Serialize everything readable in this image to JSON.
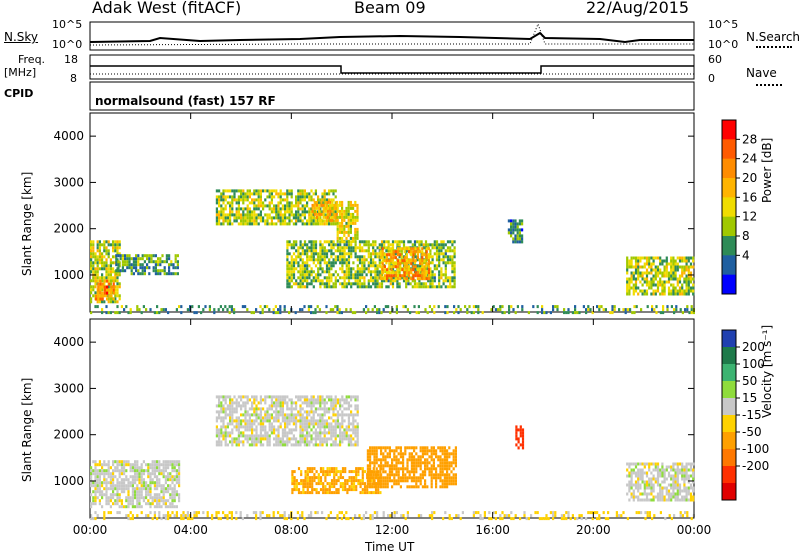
{
  "header": {
    "station": "Adak West (fitACF)",
    "beam": "Beam 09",
    "date": "22/Aug/2015"
  },
  "top_panels": {
    "nsky_label": "N.Sky",
    "nsky_ticks": [
      "10^5",
      "10^0"
    ],
    "nsearch_label": "N.Search",
    "nsearch_ticks": [
      "10^5",
      "10^0"
    ],
    "freq_label": "Freq.",
    "freq_unit": "[MHz]",
    "freq_ticks": [
      "18",
      "8"
    ],
    "nave_label": "Nave",
    "nave_ticks": [
      "60",
      "0"
    ],
    "cpid_label": "CPID",
    "cpid_value": "normalsound (fast) 157 RF"
  },
  "power_colorbar": {
    "label": "Power [dB]",
    "ticks": [
      "28",
      "24",
      "20",
      "16",
      "12",
      "8",
      "4"
    ],
    "colors": [
      "#ff0000",
      "#ff5a00",
      "#ff8c00",
      "#ffb400",
      "#f0dc00",
      "#a0c800",
      "#2e8b57",
      "#1f5fa0",
      "#0000ff"
    ]
  },
  "velocity_colorbar": {
    "label": "Velocity [m s⁻¹]",
    "ticks": [
      "200",
      "100",
      "50",
      "15",
      "-15",
      "-50",
      "-100",
      "-200"
    ],
    "colors": [
      "#2040b0",
      "#1e7a4a",
      "#3cb371",
      "#8fdc3c",
      "#c8c8c8",
      "#ffd200",
      "#ffa000",
      "#ff7800",
      "#ff3000",
      "#e00000"
    ]
  },
  "chart_data": [
    {
      "type": "heatmap",
      "name": "power",
      "ylabel": "Slant Range [km]",
      "y_ticks": [
        "4000",
        "3000",
        "2000",
        "1000"
      ],
      "ylim": [
        200,
        4500
      ],
      "x_ticks": [
        "00:00",
        "04:00",
        "08:00",
        "12:00",
        "16:00",
        "20:00",
        "00:00"
      ],
      "xlim": [
        0,
        24
      ],
      "regions": [
        {
          "t0": 0.0,
          "t1": 1.2,
          "r0": 450,
          "r1": 1750,
          "value": 14
        },
        {
          "t0": 0.2,
          "t1": 0.9,
          "r0": 500,
          "r1": 900,
          "value": 22
        },
        {
          "t0": 1.0,
          "t1": 3.5,
          "r0": 1050,
          "r1": 1450,
          "value": 9
        },
        {
          "t0": 5.0,
          "t1": 9.8,
          "r0": 2100,
          "r1": 2850,
          "value": 13
        },
        {
          "t0": 8.8,
          "t1": 9.8,
          "r0": 2200,
          "r1": 2600,
          "value": 18
        },
        {
          "t0": 9.8,
          "t1": 10.6,
          "r0": 1750,
          "r1": 2600,
          "value": 15
        },
        {
          "t0": 7.8,
          "t1": 14.5,
          "r0": 750,
          "r1": 1750,
          "value": 12
        },
        {
          "t0": 11.5,
          "t1": 13.5,
          "r0": 900,
          "r1": 1600,
          "value": 20
        },
        {
          "t0": 16.6,
          "t1": 17.2,
          "r0": 1700,
          "r1": 2200,
          "value": 8
        },
        {
          "t0": 21.3,
          "t1": 24.0,
          "r0": 600,
          "r1": 1400,
          "value": 13
        },
        {
          "t0": 0.0,
          "t1": 24.0,
          "r0": 200,
          "r1": 350,
          "value": 10
        }
      ]
    },
    {
      "type": "heatmap",
      "name": "velocity",
      "ylabel": "Slant Range [km]",
      "y_ticks": [
        "4000",
        "3000",
        "2000",
        "1000"
      ],
      "ylim": [
        200,
        4500
      ],
      "x_ticks": [
        "00:00",
        "04:00",
        "08:00",
        "12:00",
        "16:00",
        "20:00",
        "00:00"
      ],
      "xlabel": "Time UT",
      "xlim": [
        0,
        24
      ],
      "regions": [
        {
          "t0": 0.0,
          "t1": 3.5,
          "r0": 450,
          "r1": 1450,
          "value": 0
        },
        {
          "t0": 5.0,
          "t1": 10.6,
          "r0": 1750,
          "r1": 2850,
          "value": 0
        },
        {
          "t0": 8.0,
          "t1": 11.5,
          "r0": 750,
          "r1": 1300,
          "value": -60
        },
        {
          "t0": 11.0,
          "t1": 14.5,
          "r0": 900,
          "r1": 1750,
          "value": -80
        },
        {
          "t0": 16.9,
          "t1": 17.2,
          "r0": 1700,
          "r1": 2200,
          "value": -220
        },
        {
          "t0": 21.3,
          "t1": 24.0,
          "r0": 600,
          "r1": 1400,
          "value": 0
        },
        {
          "t0": 0.0,
          "t1": 24.0,
          "r0": 200,
          "r1": 350,
          "value": -20
        }
      ]
    }
  ]
}
